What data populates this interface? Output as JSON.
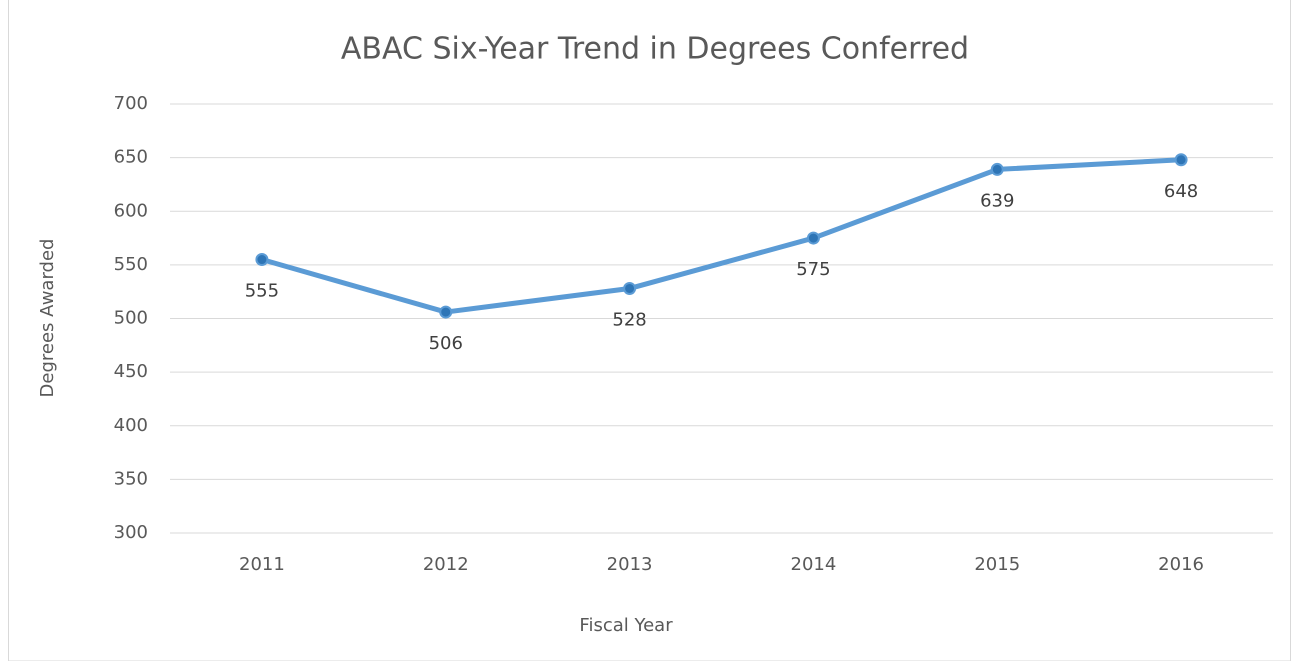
{
  "chart_data": {
    "type": "line",
    "title": "ABAC Six-Year Trend in Degrees Conferred",
    "x_label": "Fiscal Year",
    "y_label": "Degrees Awarded",
    "categories": [
      "2011",
      "2012",
      "2013",
      "2014",
      "2015",
      "2016"
    ],
    "values": [
      555,
      506,
      528,
      575,
      639,
      648
    ],
    "color": "#5b9bd5",
    "marker_color": "#2e75b6",
    "ylim": [
      300,
      700
    ],
    "yticks": [
      300,
      350,
      400,
      450,
      500,
      550,
      600,
      650,
      700
    ],
    "grid": true
  }
}
